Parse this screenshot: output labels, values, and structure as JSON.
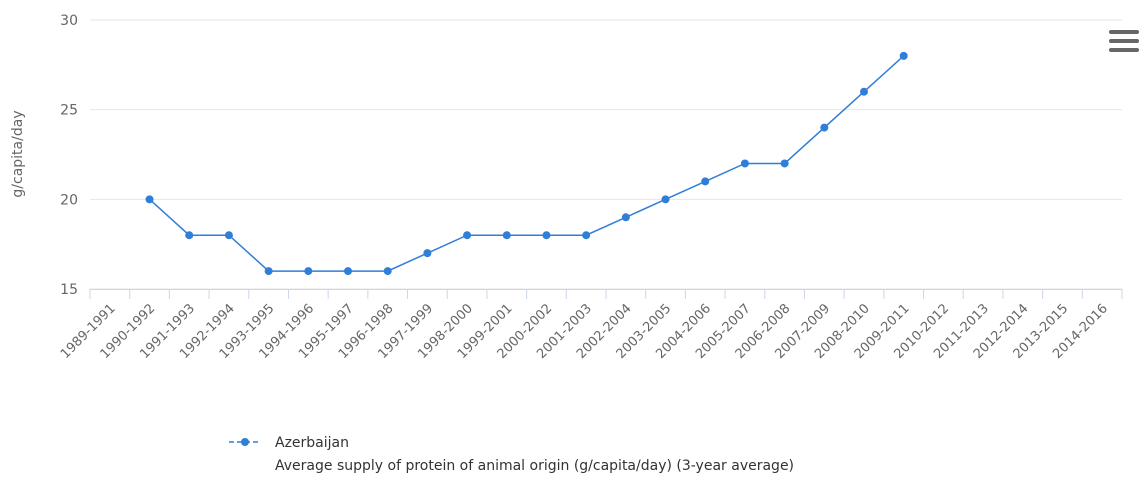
{
  "chart_data": {
    "type": "line",
    "y_label": "g/capita/day",
    "categories": [
      "1989-1991",
      "1990-1992",
      "1991-1993",
      "1992-1994",
      "1993-1995",
      "1994-1996",
      "1995-1997",
      "1996-1998",
      "1997-1999",
      "1998-2000",
      "1999-2001",
      "2000-2002",
      "2001-2003",
      "2002-2004",
      "2003-2005",
      "2004-2006",
      "2005-2007",
      "2006-2008",
      "2007-2009",
      "2008-2010",
      "2009-2011",
      "2010-2012",
      "2011-2013",
      "2012-2014",
      "2013-2015",
      "2014-2016"
    ],
    "series": [
      {
        "name": "Azerbaijan",
        "description": "Average supply of protein of animal origin (g/capita/day) (3-year average)",
        "color": "#2f7ed8",
        "values": [
          null,
          20,
          18,
          18,
          16,
          16,
          16,
          16,
          17,
          18,
          18,
          18,
          18,
          19,
          20,
          21,
          22,
          22,
          24,
          26,
          28,
          null,
          null,
          null,
          null,
          null
        ]
      }
    ],
    "ylim": [
      15,
      30
    ],
    "yticks": [
      15,
      20,
      25,
      30
    ],
    "grid": true
  }
}
